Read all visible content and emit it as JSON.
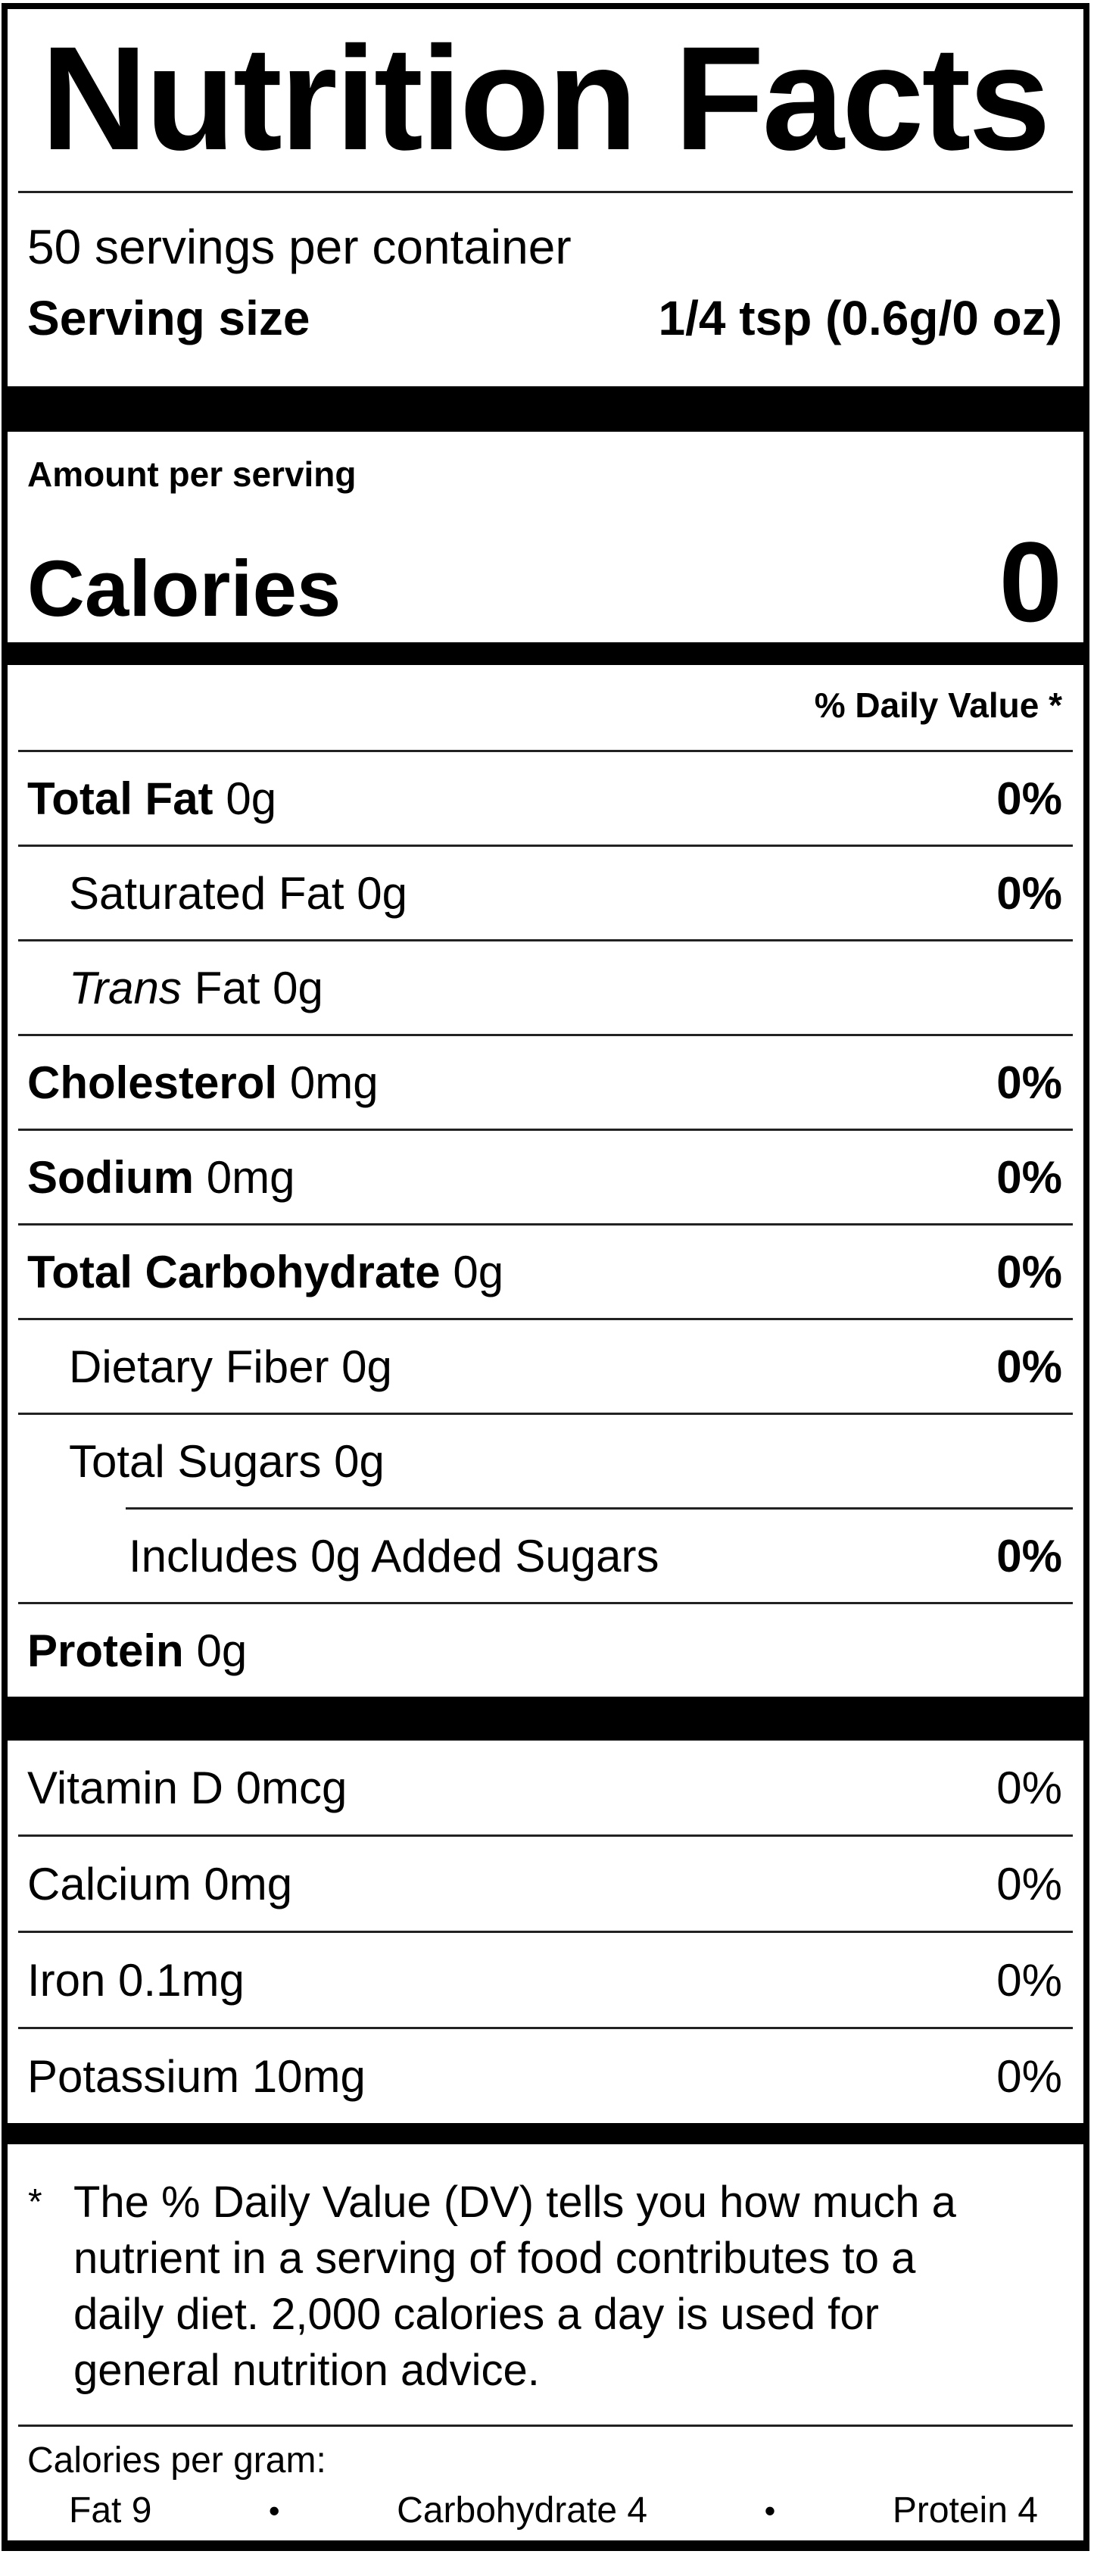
{
  "title": "Nutrition Facts",
  "servings_per_container": "50 servings per container",
  "serving_size": {
    "label": "Serving size",
    "value": "1/4 tsp (0.6g/0 oz)"
  },
  "calories": {
    "header": "Amount per serving",
    "label": "Calories",
    "value": "0"
  },
  "daily_value_header": "% Daily Value *",
  "nutrients": {
    "total_fat": {
      "bold": "Total Fat",
      "rest": "0g",
      "dv": "0%"
    },
    "saturated_fat": {
      "name": "Saturated Fat 0g",
      "dv": "0%"
    },
    "trans_fat": {
      "italic": "Trans",
      "rest": "Fat 0g"
    },
    "cholesterol": {
      "bold": "Cholesterol",
      "rest": "0mg",
      "dv": "0%"
    },
    "sodium": {
      "bold": "Sodium",
      "rest": "0mg",
      "dv": "0%"
    },
    "total_carbohydrate": {
      "bold": "Total Carbohydrate",
      "rest": "0g",
      "dv": "0%"
    },
    "dietary_fiber": {
      "name": "Dietary Fiber 0g",
      "dv": "0%"
    },
    "total_sugars": {
      "name": "Total Sugars 0g"
    },
    "added_sugars": {
      "name": "Includes 0g Added Sugars",
      "dv": "0%"
    },
    "protein": {
      "bold": "Protein",
      "rest": "0g"
    }
  },
  "vitamins": [
    {
      "name": "Vitamin D 0mcg",
      "dv": "0%"
    },
    {
      "name": "Calcium 0mg",
      "dv": "0%"
    },
    {
      "name": "Iron 0.1mg",
      "dv": "0%"
    },
    {
      "name": "Potassium 10mg",
      "dv": "0%"
    }
  ],
  "footnote": {
    "marker": "*",
    "lines": [
      "The % Daily Value (DV) tells you how much a",
      "nutrient in a serving of food contributes to a",
      "daily diet. 2,000 calories a day is used for",
      "general nutrition advice."
    ]
  },
  "calories_per_gram": {
    "label": "Calories per gram:",
    "bullet": "•",
    "items": [
      "Fat 9",
      "Carbohydrate 4",
      "Protein 4"
    ]
  }
}
